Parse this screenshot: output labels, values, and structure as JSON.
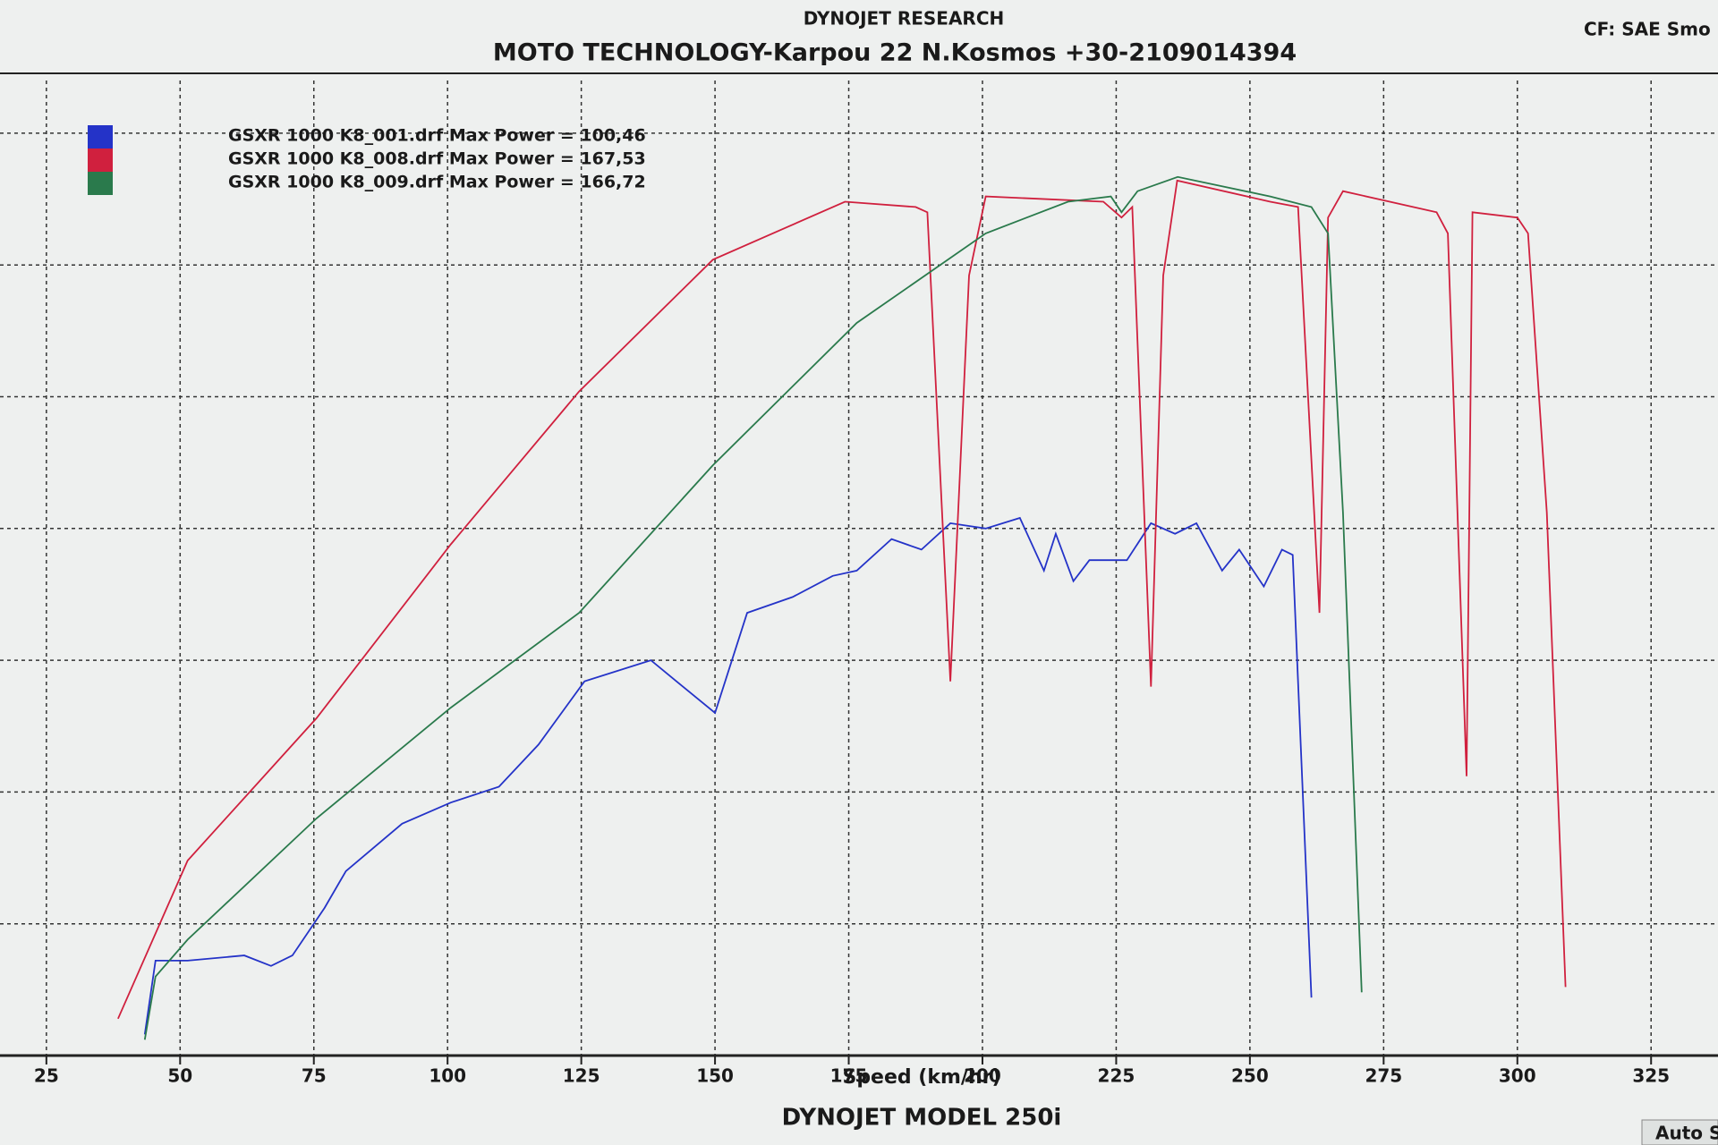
{
  "chart_data": {
    "type": "line",
    "header": "DYNOJET RESEARCH",
    "title": "MOTO TECHNOLOGY-Karpou 22 N.Kosmos +30-2109014394",
    "correction": "CF: SAE Smo",
    "x_label": "Speed (km/hr)",
    "footer": "DYNOJET MODEL 250i",
    "status": "Auto S",
    "xlim": [
      18,
      335
    ],
    "xticks": [
      25,
      50,
      75,
      100,
      125,
      150,
      175,
      200,
      225,
      250,
      275,
      300,
      325
    ],
    "ylim": [
      0,
      185
    ],
    "ygrid": [
      25,
      50,
      75,
      100,
      125,
      150,
      175
    ],
    "grid": true,
    "series": [
      {
        "name": "GSXR 1000 K8_001.drf Max Power = 100,46",
        "color": "#2433c8",
        "x": [
          43.4,
          45.4,
          51.4,
          62,
          67,
          71,
          77,
          81,
          91.5,
          100.6,
          109.6,
          117,
          125.6,
          138,
          144,
          150,
          156,
          164.5,
          172,
          176.5,
          183,
          188.6,
          194,
          200.6,
          207,
          211.5,
          213.7,
          217,
          220,
          227,
          231.5,
          236,
          240,
          244.8,
          248,
          252.6,
          256,
          258,
          261.5
        ],
        "values": [
          4,
          18,
          18,
          19,
          17,
          19,
          28,
          35,
          44,
          48,
          51,
          59,
          71,
          75,
          70,
          65,
          84,
          87,
          91,
          92,
          98,
          96,
          101,
          100,
          102,
          92,
          99,
          90,
          94,
          94,
          101,
          99,
          101,
          92,
          96,
          89,
          96,
          95,
          11
        ]
      },
      {
        "name": "GSXR 1000 K8_008.drf Max Power = 167,53",
        "color": "#d0203e",
        "x": [
          38.4,
          51.4,
          75.5,
          100.6,
          124.6,
          149.6,
          174.3,
          187.5,
          189.7,
          194,
          197.5,
          200.6,
          222.6,
          226,
          228,
          231.5,
          233.8,
          236.4,
          253.8,
          259,
          263,
          264.6,
          267.4,
          284.9,
          287,
          290.5,
          291.6,
          300,
          302,
          305.5,
          309
        ],
        "values": [
          7,
          37,
          64,
          97,
          126,
          151,
          162,
          161,
          160,
          71,
          148,
          163,
          162,
          159,
          161,
          70,
          148,
          166,
          162,
          161,
          84,
          159,
          164,
          160,
          156,
          53,
          160,
          159,
          156,
          103,
          13
        ]
      },
      {
        "name": "GSXR 1000 K8_009.drf Max Power = 166,72",
        "color": "#2a7a4c",
        "x": [
          43.4,
          45.4,
          51.4,
          75.5,
          100.6,
          124.6,
          149.6,
          176.5,
          200.6,
          216,
          224,
          226,
          229,
          236.5,
          253.8,
          261.5,
          264.6,
          267.4,
          270.9
        ],
        "values": [
          3,
          15,
          22,
          45,
          66,
          84,
          112,
          139,
          156,
          162,
          163,
          160,
          164,
          166.7,
          163,
          161,
          156,
          103,
          12
        ]
      }
    ]
  }
}
